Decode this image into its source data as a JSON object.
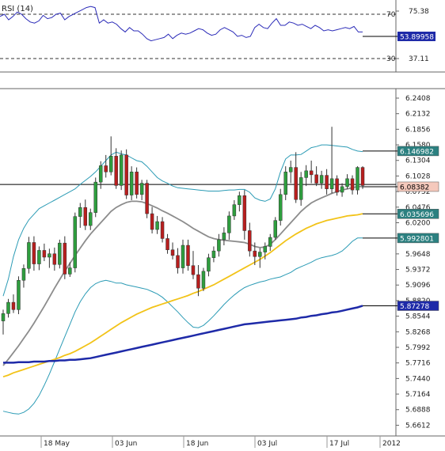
{
  "chart_data": [
    {
      "id": "rsi-panel",
      "type": "line",
      "title": "RSI (14)",
      "current_value": "53.89958",
      "y_ticks": [
        "75.38",
        "37.11"
      ],
      "levels": [
        {
          "value": "70",
          "dash": true
        },
        {
          "value": "30",
          "dash": true
        }
      ],
      "ylim": [
        20,
        80
      ],
      "series": [
        {
          "values": [
            68,
            70,
            65,
            68,
            72,
            70,
            66,
            63,
            62,
            64,
            69,
            66,
            67,
            70,
            71,
            65,
            68,
            70,
            72,
            74,
            76,
            77,
            76,
            62,
            65,
            62,
            63,
            61,
            57,
            54,
            58,
            55,
            55,
            52,
            48,
            46,
            47,
            48,
            49,
            52,
            48,
            51,
            53,
            52,
            53,
            55,
            57,
            56,
            53,
            51,
            52,
            56,
            58,
            56,
            54,
            50,
            51,
            49,
            50,
            58,
            61,
            58,
            57,
            62,
            66,
            60,
            60,
            63,
            62,
            60,
            61,
            59,
            57,
            60,
            58,
            55,
            56,
            55,
            56,
            57,
            58,
            57,
            59,
            54,
            54
          ],
          "color": "#2b2bb8"
        }
      ]
    },
    {
      "id": "price-panel",
      "type": "candlestick",
      "y_ticks": [
        "6.2408",
        "6.2132",
        "6.1856",
        "6.1580",
        "6.1304",
        "6.1028",
        "6.0752",
        "6.0476",
        "6.0200",
        "5.9648",
        "5.9372",
        "5.9096",
        "5.8820",
        "5.8544",
        "5.8268",
        "5.7992",
        "5.7716",
        "5.7440",
        "5.7164",
        "5.6888",
        "5.6612"
      ],
      "x_labels": [
        "18 May",
        "03 Jun",
        "18 Jun",
        "03 Jul",
        "17 Jul",
        "2012"
      ],
      "ylim": [
        5.652,
        6.252
      ],
      "horizontal_line": 6.0878,
      "candles": [
        [
          5.846,
          5.866,
          5.822,
          5.859
        ],
        [
          5.859,
          5.885,
          5.852,
          5.879
        ],
        [
          5.879,
          5.893,
          5.86,
          5.866
        ],
        [
          5.866,
          5.925,
          5.858,
          5.918
        ],
        [
          5.918,
          5.946,
          5.905,
          5.939
        ],
        [
          5.939,
          5.995,
          5.93,
          5.985
        ],
        [
          5.985,
          5.996,
          5.935,
          5.947
        ],
        [
          5.947,
          5.978,
          5.936,
          5.971
        ],
        [
          5.971,
          5.983,
          5.952,
          5.959
        ],
        [
          5.959,
          5.974,
          5.94,
          5.965
        ],
        [
          5.965,
          5.976,
          5.935,
          5.946
        ],
        [
          5.946,
          5.99,
          5.939,
          5.984
        ],
        [
          5.984,
          5.996,
          5.92,
          5.929
        ],
        [
          5.929,
          5.95,
          5.924,
          5.94
        ],
        [
          5.94,
          6.038,
          5.932,
          6.031
        ],
        [
          6.031,
          6.055,
          6.011,
          6.047
        ],
        [
          6.047,
          6.061,
          6.007,
          6.015
        ],
        [
          6.015,
          6.045,
          6.007,
          6.038
        ],
        [
          6.038,
          6.1,
          6.03,
          6.092
        ],
        [
          6.092,
          6.129,
          6.08,
          6.121
        ],
        [
          6.121,
          6.14,
          6.1,
          6.11
        ],
        [
          6.11,
          6.173,
          6.104,
          6.138
        ],
        [
          6.138,
          6.152,
          6.08,
          6.086
        ],
        [
          6.086,
          6.148,
          6.078,
          6.14
        ],
        [
          6.14,
          6.15,
          6.062,
          6.069
        ],
        [
          6.069,
          6.12,
          6.06,
          6.11
        ],
        [
          6.11,
          6.118,
          6.063,
          6.07
        ],
        [
          6.07,
          6.096,
          6.06,
          6.09
        ],
        [
          6.09,
          6.096,
          6.028,
          6.036
        ],
        [
          6.036,
          6.048,
          6.001,
          6.008
        ],
        [
          6.008,
          6.032,
          6.0,
          6.022
        ],
        [
          6.022,
          6.03,
          5.985,
          5.992
        ],
        [
          5.992,
          6.0,
          5.965,
          5.972
        ],
        [
          5.972,
          5.985,
          5.955,
          5.962
        ],
        [
          5.962,
          5.975,
          5.93,
          5.94
        ],
        [
          5.94,
          5.99,
          5.93,
          5.98
        ],
        [
          5.98,
          5.99,
          5.935,
          5.944
        ],
        [
          5.944,
          5.97,
          5.92,
          5.928
        ],
        [
          5.928,
          5.945,
          5.89,
          5.904
        ],
        [
          5.904,
          5.94,
          5.899,
          5.934
        ],
        [
          5.934,
          5.965,
          5.925,
          5.958
        ],
        [
          5.958,
          5.978,
          5.95,
          5.97
        ],
        [
          5.97,
          6.0,
          5.96,
          5.99
        ],
        [
          5.99,
          6.012,
          5.98,
          6.002
        ],
        [
          6.002,
          6.04,
          5.99,
          6.032
        ],
        [
          6.032,
          6.06,
          6.025,
          6.052
        ],
        [
          6.052,
          6.075,
          6.04,
          6.068
        ],
        [
          6.068,
          6.078,
          5.99,
          6.006
        ],
        [
          6.006,
          6.02,
          5.96,
          5.97
        ],
        [
          5.97,
          5.985,
          5.945,
          5.96
        ],
        [
          5.96,
          5.975,
          5.94,
          5.968
        ],
        [
          5.968,
          5.985,
          5.955,
          5.978
        ],
        [
          5.978,
          6.0,
          5.97,
          5.994
        ],
        [
          5.994,
          6.03,
          5.99,
          6.024
        ],
        [
          6.024,
          6.08,
          6.015,
          6.07
        ],
        [
          6.07,
          6.12,
          6.06,
          6.11
        ],
        [
          6.11,
          6.13,
          6.09,
          6.118
        ],
        [
          6.118,
          6.145,
          6.055,
          6.061
        ],
        [
          6.061,
          6.11,
          6.05,
          6.1
        ],
        [
          6.1,
          6.122,
          6.085,
          6.112
        ],
        [
          6.112,
          6.13,
          6.09,
          6.105
        ],
        [
          6.105,
          6.12,
          6.085,
          6.09
        ],
        [
          6.09,
          6.112,
          6.08,
          6.104
        ],
        [
          6.104,
          6.115,
          6.07,
          6.08
        ],
        [
          6.08,
          6.19,
          6.072,
          6.098
        ],
        [
          6.098,
          6.104,
          6.068,
          6.074
        ],
        [
          6.074,
          6.09,
          6.066,
          6.084
        ],
        [
          6.084,
          6.106,
          6.08,
          6.098
        ],
        [
          6.098,
          6.104,
          6.07,
          6.078
        ],
        [
          6.078,
          6.12,
          6.07,
          6.118
        ],
        [
          6.118,
          6.12,
          6.08,
          6.086
        ]
      ],
      "overlays": [
        {
          "name": "upper-band",
          "color": "#2b9bb5",
          "values": [
            5.89,
            5.92,
            5.96,
            5.99,
            6.01,
            6.025,
            6.035,
            6.045,
            6.05,
            6.055,
            6.06,
            6.065,
            6.07,
            6.075,
            6.08,
            6.088,
            6.095,
            6.102,
            6.11,
            6.12,
            6.13,
            6.14,
            6.145,
            6.142,
            6.14,
            6.135,
            6.13,
            6.128,
            6.12,
            6.11,
            6.1,
            6.094,
            6.09,
            6.085,
            6.082,
            6.081,
            6.08,
            6.079,
            6.078,
            6.077,
            6.076,
            6.076,
            6.076,
            6.077,
            6.078,
            6.078,
            6.079,
            6.079,
            6.074,
            6.064,
            6.06,
            6.058,
            6.062,
            6.08,
            6.11,
            6.133,
            6.14,
            6.14,
            6.141,
            6.147,
            6.153,
            6.155,
            6.158,
            6.158,
            6.157,
            6.156,
            6.155,
            6.154,
            6.15,
            6.147,
            6.146
          ]
        },
        {
          "name": "middle-band",
          "color": "#8c8c8c",
          "values": [
            5.767,
            5.778,
            5.79,
            5.802,
            5.815,
            5.828,
            5.842,
            5.857,
            5.872,
            5.888,
            5.904,
            5.919,
            5.934,
            5.948,
            5.962,
            5.975,
            5.988,
            6.0,
            6.01,
            6.02,
            6.03,
            6.04,
            6.047,
            6.052,
            6.056,
            6.058,
            6.058,
            6.057,
            6.054,
            6.05,
            6.046,
            6.041,
            6.037,
            6.032,
            6.027,
            6.022,
            6.016,
            6.01,
            6.005,
            6.0,
            5.995,
            5.992,
            5.99,
            5.989,
            5.988,
            5.987,
            5.986,
            5.985,
            5.982,
            5.978,
            5.976,
            5.977,
            5.982,
            5.99,
            6.0,
            6.01,
            6.02,
            6.03,
            6.04,
            6.048,
            6.055,
            6.06,
            6.064,
            6.068,
            6.072,
            6.075,
            6.078,
            6.08,
            6.082,
            6.084,
            6.084
          ]
        },
        {
          "name": "lower-band",
          "color": "#2b9bb5",
          "values": [
            5.686,
            5.684,
            5.682,
            5.681,
            5.684,
            5.69,
            5.7,
            5.714,
            5.732,
            5.752,
            5.774,
            5.796,
            5.818,
            5.84,
            5.862,
            5.88,
            5.894,
            5.905,
            5.912,
            5.916,
            5.918,
            5.916,
            5.913,
            5.913,
            5.91,
            5.908,
            5.906,
            5.904,
            5.902,
            5.898,
            5.894,
            5.888,
            5.88,
            5.871,
            5.862,
            5.852,
            5.843,
            5.835,
            5.834,
            5.838,
            5.846,
            5.855,
            5.865,
            5.875,
            5.884,
            5.892,
            5.899,
            5.905,
            5.909,
            5.912,
            5.915,
            5.917,
            5.92,
            5.922,
            5.924,
            5.928,
            5.932,
            5.938,
            5.942,
            5.946,
            5.95,
            5.955,
            5.958,
            5.96,
            5.962,
            5.965,
            5.97,
            5.978,
            5.987,
            5.993,
            5.993
          ]
        },
        {
          "name": "sma-yellow",
          "color": "#f2c318",
          "values": [
            5.747,
            5.75,
            5.754,
            5.757,
            5.76,
            5.763,
            5.766,
            5.769,
            5.772,
            5.775,
            5.778,
            5.781,
            5.785,
            5.788,
            5.792,
            5.797,
            5.802,
            5.807,
            5.813,
            5.819,
            5.825,
            5.831,
            5.837,
            5.843,
            5.848,
            5.853,
            5.858,
            5.862,
            5.866,
            5.87,
            5.873,
            5.876,
            5.879,
            5.882,
            5.885,
            5.888,
            5.891,
            5.895,
            5.898,
            5.902,
            5.906,
            5.91,
            5.915,
            5.92,
            5.925,
            5.93,
            5.935,
            5.94,
            5.945,
            5.95,
            5.955,
            5.961,
            5.967,
            5.974,
            5.981,
            5.988,
            5.994,
            6.0,
            6.005,
            6.01,
            6.014,
            6.018,
            6.021,
            6.024,
            6.026,
            6.028,
            6.03,
            6.032,
            6.033,
            6.034,
            6.036
          ]
        },
        {
          "name": "sma-blue",
          "color": "#1e2aa8",
          "values": [
            5.772,
            5.772,
            5.772,
            5.773,
            5.773,
            5.773,
            5.774,
            5.774,
            5.774,
            5.775,
            5.775,
            5.776,
            5.776,
            5.777,
            5.777,
            5.778,
            5.779,
            5.78,
            5.782,
            5.784,
            5.786,
            5.788,
            5.79,
            5.792,
            5.794,
            5.796,
            5.798,
            5.8,
            5.802,
            5.804,
            5.806,
            5.808,
            5.81,
            5.812,
            5.814,
            5.816,
            5.818,
            5.82,
            5.822,
            5.824,
            5.826,
            5.828,
            5.83,
            5.832,
            5.834,
            5.836,
            5.838,
            5.84,
            5.841,
            5.842,
            5.843,
            5.844,
            5.845,
            5.846,
            5.847,
            5.848,
            5.849,
            5.85,
            5.852,
            5.853,
            5.855,
            5.856,
            5.858,
            5.859,
            5.861,
            5.862,
            5.864,
            5.866,
            5.868,
            5.87,
            5.873
          ]
        }
      ],
      "value_tags": [
        {
          "label": "6.146982",
          "value": 6.146982,
          "fill": "#2b8080",
          "text_color": "#ffffff"
        },
        {
          "label": "6.08382",
          "value": 6.08382,
          "fill": "#f5c9bc",
          "text_color": "#000000"
        },
        {
          "label": "6.035696",
          "value": 6.035696,
          "fill": "#2b8080",
          "text_color": "#ffffff"
        },
        {
          "label": "5.992801",
          "value": 5.992801,
          "fill": "#2b8080",
          "text_color": "#ffffff"
        },
        {
          "label": "5.87278",
          "value": 5.87278,
          "fill": "#1e2aa8",
          "text_color": "#ffffff"
        }
      ]
    }
  ],
  "colors": {
    "bull": "#2e9e3e",
    "bear": "#b81e1e",
    "grid": "#dddddd",
    "frame": "#666666"
  }
}
